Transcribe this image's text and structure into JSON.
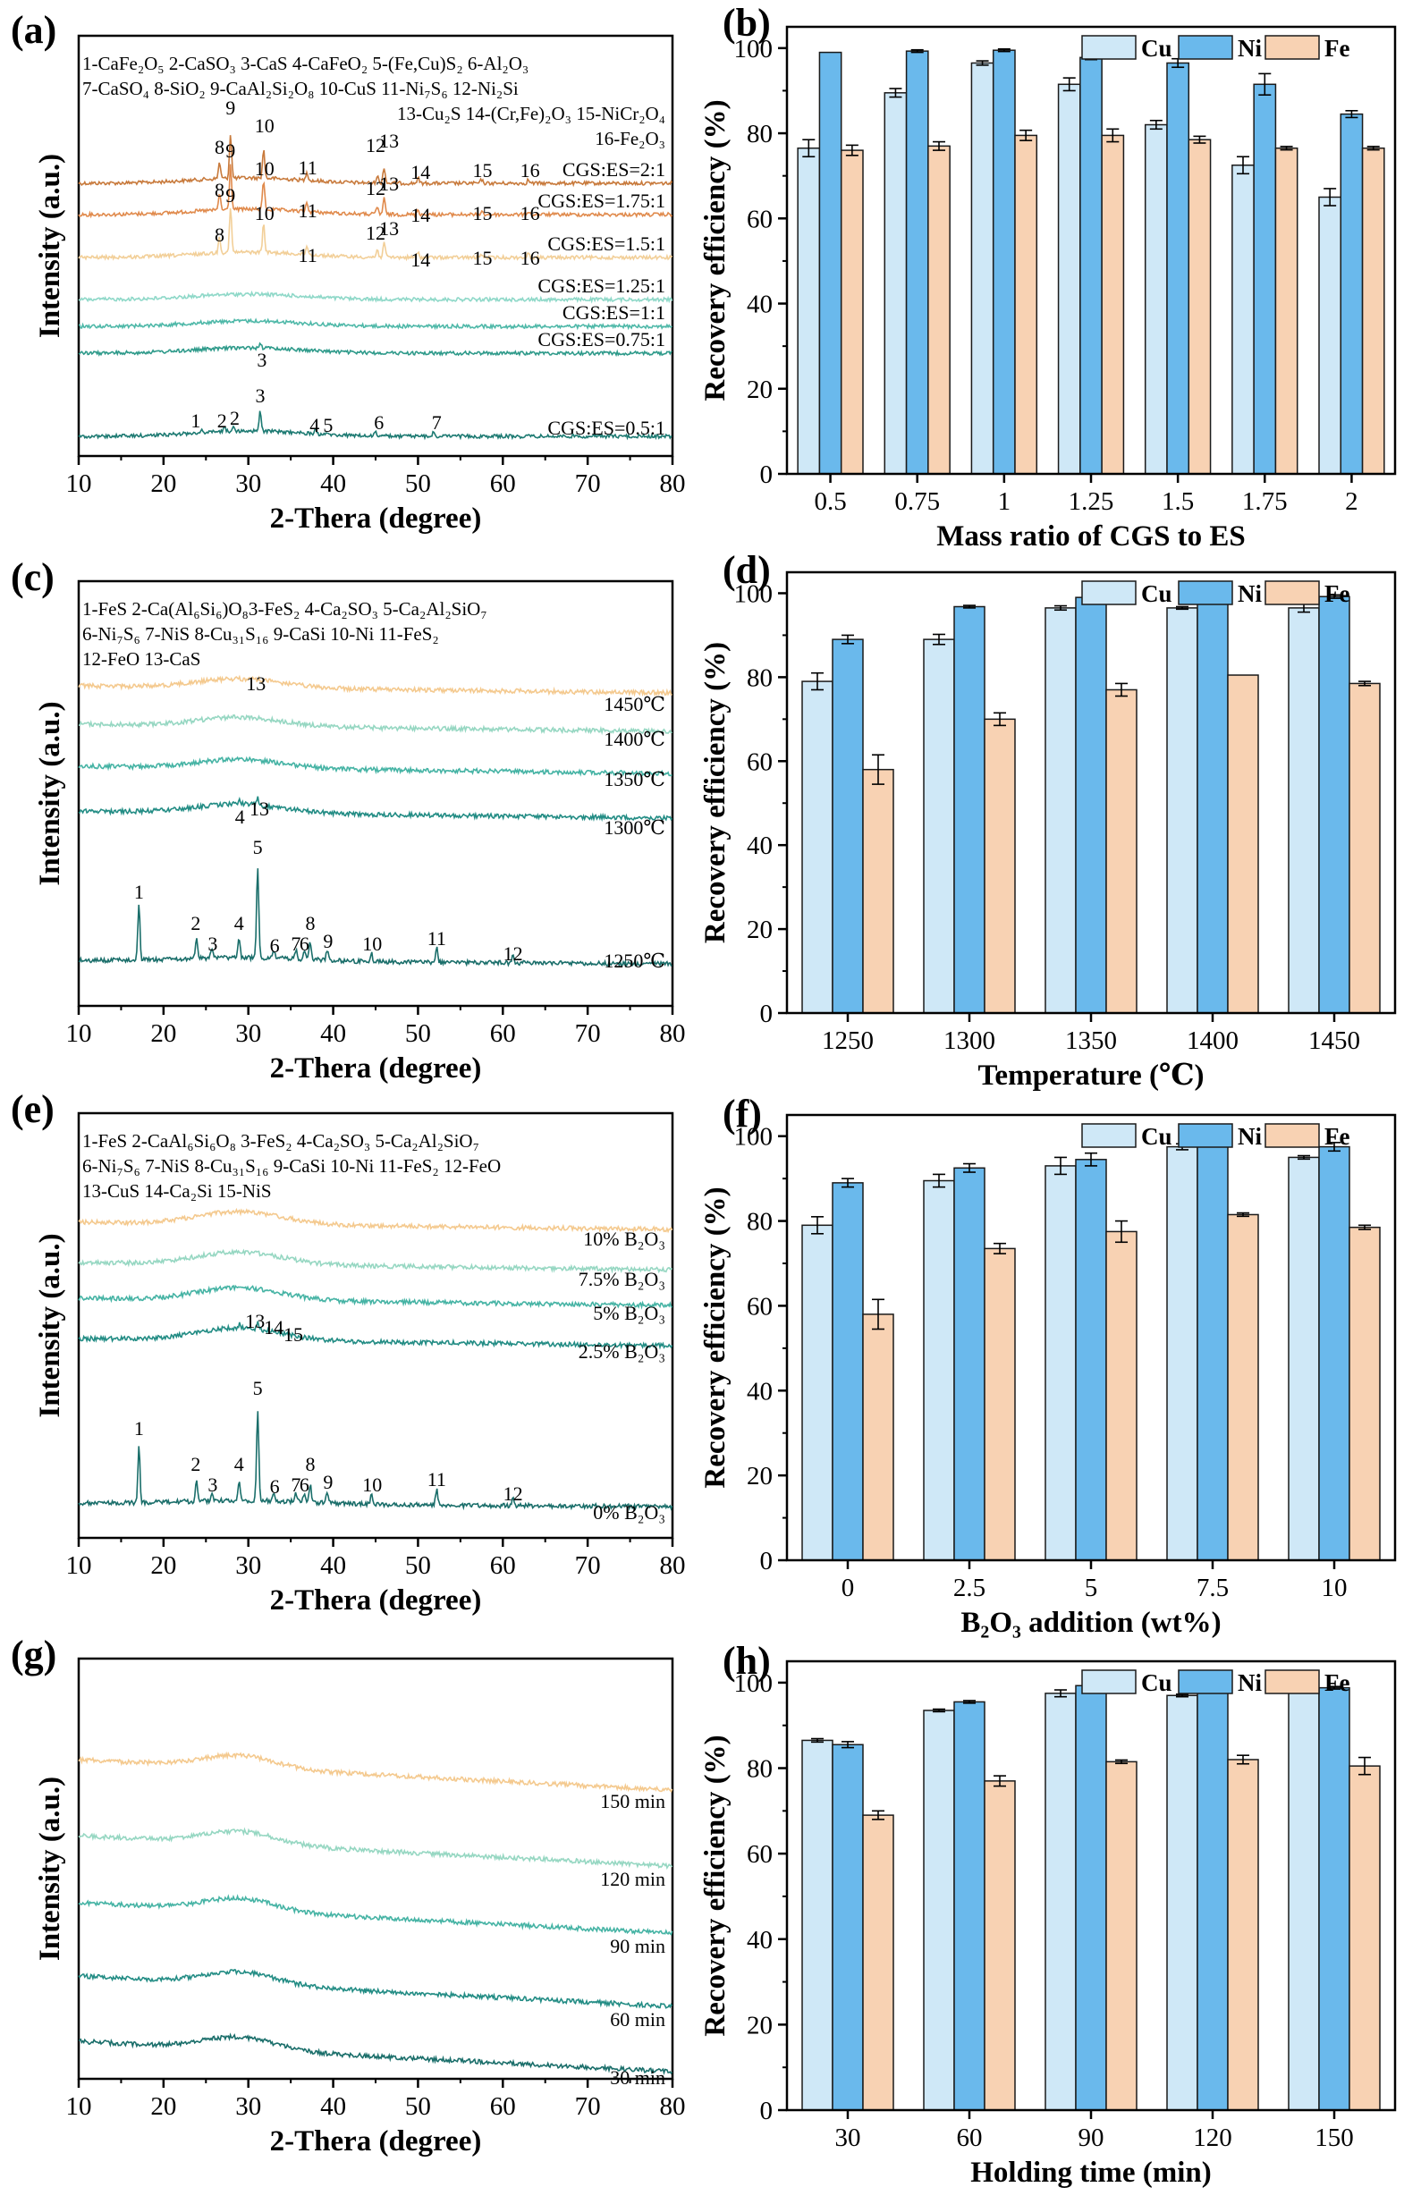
{
  "colors": {
    "Cu": "#cfe8f7",
    "Ni": "#6ab9ec",
    "Fe": "#f8d2b3",
    "bar_edge": "#1a1a1a",
    "xrd_a": [
      "#c87a3c",
      "#e08a4c",
      "#f2cf98",
      "#8ed8c8",
      "#4eb8a8",
      "#2e9a8a",
      "#1d7a72"
    ],
    "xrd_temp": [
      "#f4c98e",
      "#96d7c2",
      "#45b3a4",
      "#228c84",
      "#1a6e6a"
    ]
  },
  "panels": {
    "a": {
      "label": "(a)",
      "xlabel": "2-Thera (degree)",
      "ylabel": "Intensity (a.u.)",
      "xticks": [
        "10",
        "20",
        "30",
        "40",
        "50",
        "60",
        "70",
        "80"
      ],
      "legend_lines": [
        "1-CaFe₂O₅ 2-CaSO₃ 3-CaS 4-CaFeO₂ 5-(Fe,Cu)S₂ 6-Al₂O₃",
        "7-CaSO₄ 8-SiO₂ 9-CaAl₂Si₂O₈ 10-CuS 11-Ni₇S₆ 12-Ni₂Si",
        "13-Cu₂S 14-(Cr,Fe)₂O₃ 15-NiCr₂O₄",
        "16-Fe₂O₃"
      ],
      "curves": [
        "CGS:ES=2:1",
        "CGS:ES=1.75:1",
        "CGS:ES=1.5:1",
        "CGS:ES=1.25:1",
        "CGS:ES=1:1",
        "CGS:ES=0.75:1",
        "CGS:ES=0.5:1"
      ],
      "peak_labels_top": [
        "8",
        "9",
        "10",
        "11",
        "12",
        "13",
        "14",
        "15",
        "16"
      ],
      "peak_labels_bottom": [
        "1",
        "2",
        "2",
        "3",
        "3",
        "4",
        "5",
        "6",
        "7"
      ]
    },
    "c": {
      "label": "(c)",
      "xlabel": "2-Thera (degree)",
      "ylabel": "Intensity (a.u.)",
      "xticks": [
        "10",
        "20",
        "30",
        "40",
        "50",
        "60",
        "70",
        "80"
      ],
      "legend_lines": [
        "1-FeS 2-Ca(Al₆Si₆)O₈3-FeS₂ 4-Ca₂SO₃ 5-Ca₂Al₂SiO₇",
        "6-Ni₇S₆ 7-NiS 8-Cu₃₁S₁₆ 9-CaSi 10-Ni 11-FeS₂",
        "12-FeO 13-CaS"
      ],
      "curves": [
        "1450℃",
        "1400℃",
        "1350℃",
        "1300℃",
        "1250℃"
      ],
      "peak_labels_top": [
        "13",
        "4",
        "13"
      ],
      "peak_labels_bottom": [
        "1",
        "2",
        "3",
        "4",
        "5",
        "6",
        "7",
        "6",
        "8",
        "9",
        "10",
        "11",
        "12"
      ]
    },
    "e": {
      "label": "(e)",
      "xlabel": "2-Thera (degree)",
      "ylabel": "Intensity (a.u.)",
      "xticks": [
        "10",
        "20",
        "30",
        "40",
        "50",
        "60",
        "70",
        "80"
      ],
      "legend_lines": [
        "1-FeS 2-CaAl₆Si₆O₈ 3-FeS₂ 4-Ca₂SO₃ 5-Ca₂Al₂SiO₇",
        "6-Ni₇S₆ 7-NiS 8-Cu₃₁S₁₆ 9-CaSi 10-Ni 11-FeS₂ 12-FeO",
        "13-CuS 14-Ca₂Si 15-NiS"
      ],
      "curves": [
        "10% B₂O₃",
        "7.5% B₂O₃",
        "5% B₂O₃",
        "2.5% B₂O₃",
        "0% B₂O₃"
      ],
      "peak_labels_top": [
        "13",
        "14",
        "15"
      ],
      "peak_labels_bottom": [
        "1",
        "2",
        "3",
        "4",
        "5",
        "6",
        "7",
        "6",
        "8",
        "9",
        "10",
        "11",
        "12"
      ]
    },
    "g": {
      "label": "(g)",
      "xlabel": "2-Thera (degree)",
      "ylabel": "Intensity (a.u.)",
      "xticks": [
        "10",
        "20",
        "30",
        "40",
        "50",
        "60",
        "70",
        "80"
      ],
      "curves": [
        "150 min",
        "120 min",
        "90 min",
        "60 min",
        "30 min"
      ]
    },
    "b": {
      "label": "(b)"
    },
    "d": {
      "label": "(d)"
    },
    "f": {
      "label": "(f)"
    },
    "h": {
      "label": "(h)"
    }
  },
  "chart_data": [
    {
      "panel": "b",
      "type": "bar",
      "title": "",
      "xlabel": "Mass ratio of CGS to ES",
      "ylabel": "Recovery efficiency (%)",
      "ylim": [
        0,
        105
      ],
      "yticks": [
        0,
        20,
        40,
        60,
        80,
        100
      ],
      "legend": "top-right",
      "categories": [
        "0.5",
        "0.75",
        "1",
        "1.25",
        "1.5",
        "1.75",
        "2"
      ],
      "series": [
        {
          "name": "Cu",
          "values": [
            76.5,
            89.5,
            96.5,
            91.5,
            82,
            72.5,
            65
          ],
          "errors": [
            2,
            1,
            0.5,
            1.5,
            1,
            2,
            2
          ]
        },
        {
          "name": "Ni",
          "values": [
            99,
            99.3,
            99.5,
            97.8,
            96.5,
            91.5,
            84.5
          ],
          "errors": [
            0,
            0.3,
            0.3,
            0.5,
            1,
            2.5,
            0.8
          ]
        },
        {
          "name": "Fe",
          "values": [
            76,
            77,
            79.5,
            79.5,
            78.5,
            76.5,
            76.5
          ],
          "errors": [
            1.2,
            1,
            1.2,
            1.5,
            0.8,
            0.4,
            0.4
          ]
        }
      ]
    },
    {
      "panel": "d",
      "type": "bar",
      "title": "",
      "xlabel": "Temperature (℃)",
      "ylabel": "Recovery efficiency (%)",
      "ylim": [
        0,
        105
      ],
      "yticks": [
        0,
        20,
        40,
        60,
        80,
        100
      ],
      "legend": "top-right",
      "categories": [
        "1250",
        "1300",
        "1350",
        "1400",
        "1450"
      ],
      "series": [
        {
          "name": "Cu",
          "values": [
            79,
            89,
            96.5,
            96.5,
            96.5
          ],
          "errors": [
            2,
            1.2,
            0.5,
            0.3,
            1
          ]
        },
        {
          "name": "Ni",
          "values": [
            89,
            96.8,
            99,
            99.5,
            99.2
          ],
          "errors": [
            1,
            0.3,
            0.4,
            0.2,
            0.4
          ]
        },
        {
          "name": "Fe",
          "values": [
            58,
            70,
            77,
            80.5,
            78.5
          ],
          "errors": [
            3.5,
            1.5,
            1.5,
            0,
            0.5
          ]
        }
      ]
    },
    {
      "panel": "f",
      "type": "bar",
      "title": "",
      "xlabel": "B₂O₃ addition (wt%)",
      "ylabel": "Recovery efficiency (%)",
      "ylim": [
        0,
        105
      ],
      "yticks": [
        0,
        20,
        40,
        60,
        80,
        100
      ],
      "legend": "top-right",
      "categories": [
        "0",
        "2.5",
        "5",
        "7.5",
        "10"
      ],
      "series": [
        {
          "name": "Cu",
          "values": [
            79,
            89.5,
            93,
            97.5,
            95
          ],
          "errors": [
            2,
            1.5,
            2,
            0.7,
            0.4
          ]
        },
        {
          "name": "Ni",
          "values": [
            89,
            92.5,
            94.5,
            99,
            97.5
          ],
          "errors": [
            1,
            1,
            1.5,
            0.4,
            1
          ]
        },
        {
          "name": "Fe",
          "values": [
            58,
            73.5,
            77.5,
            81.5,
            78.5
          ],
          "errors": [
            3.5,
            1.2,
            2.5,
            0.4,
            0.5
          ]
        }
      ]
    },
    {
      "panel": "h",
      "type": "bar",
      "title": "",
      "xlabel": "Holding time (min)",
      "ylabel": "Recovery efficiency (%)",
      "ylim": [
        0,
        105
      ],
      "yticks": [
        0,
        20,
        40,
        60,
        80,
        100
      ],
      "legend": "top-right",
      "categories": [
        "30",
        "60",
        "90",
        "120",
        "150"
      ],
      "series": [
        {
          "name": "Cu",
          "values": [
            86.5,
            93.5,
            97.5,
            97,
            98
          ],
          "errors": [
            0.4,
            0.3,
            0.8,
            0.3,
            0.2
          ]
        },
        {
          "name": "Ni",
          "values": [
            85.5,
            95.5,
            99.3,
            99.5,
            98.8
          ],
          "errors": [
            0.7,
            0.3,
            0.4,
            0.1,
            0.3
          ]
        },
        {
          "name": "Fe",
          "values": [
            69,
            77,
            81.5,
            82,
            80.5
          ],
          "errors": [
            1,
            1.2,
            0.4,
            1,
            2
          ]
        }
      ]
    }
  ]
}
